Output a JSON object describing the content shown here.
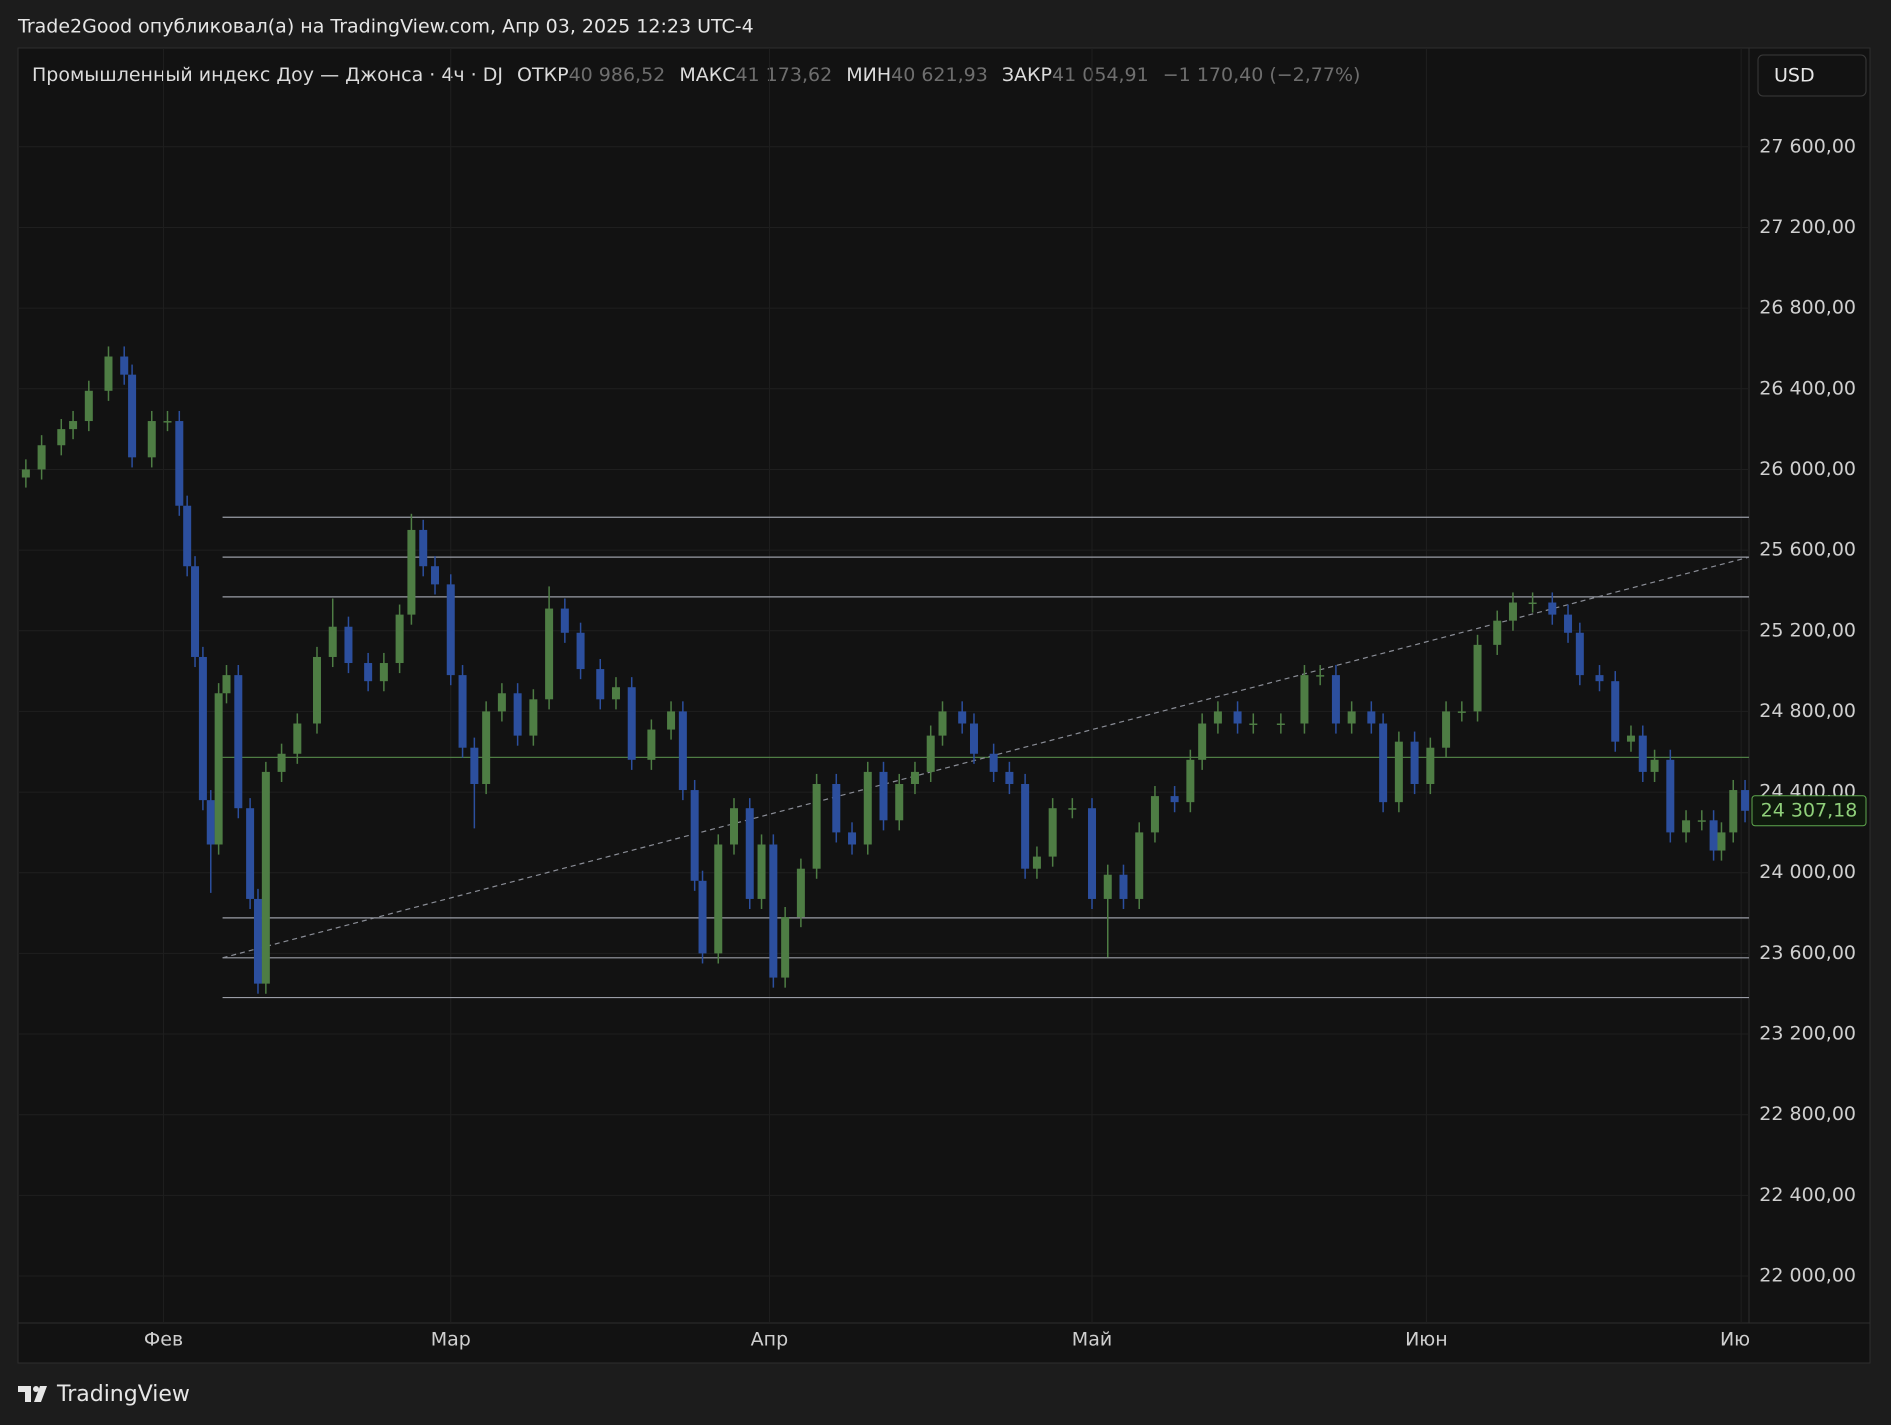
{
  "header": {
    "publisher": "Trade2Good опубликовал(а) на TradingView.com, Апр 03, 2025 12:23 UTC-4",
    "symbol": "Промышленный индекс Доу — Джонса · 4ч · DJ",
    "open_label": "ОТКР",
    "open_value": "40 986,52",
    "high_label": "МАКС",
    "high_value": "41 173,62",
    "low_label": "МИН",
    "low_value": "40 621,93",
    "close_label": "ЗАКР",
    "close_value": "41 054,91",
    "change": "−1 170,40 (−2,77%)",
    "currency": "USD"
  },
  "footer": {
    "brand": "TradingView"
  },
  "chart_data": {
    "type": "candlestick",
    "up_color": "#4e7d44",
    "down_color": "#2c4f9e",
    "grid": true,
    "xlim": [
      0,
      440
    ],
    "ylim": [
      21767,
      28090
    ],
    "xticks": [
      {
        "value": 37,
        "label": "Фев"
      },
      {
        "value": 110,
        "label": "Мар"
      },
      {
        "value": 191,
        "label": "Апр"
      },
      {
        "value": 273,
        "label": "Май"
      },
      {
        "value": 358,
        "label": "Июн"
      },
      {
        "value": 438,
        "label": "Июл"
      }
    ],
    "yticks": [
      {
        "value": 22000,
        "label": "22 000,00"
      },
      {
        "value": 22400,
        "label": "22 400,00"
      },
      {
        "value": 22800,
        "label": "22 800,00"
      },
      {
        "value": 23200,
        "label": "23 200,00"
      },
      {
        "value": 23600,
        "label": "23 600,00"
      },
      {
        "value": 24000,
        "label": "24 000,00"
      },
      {
        "value": 24400,
        "label": "24 400,00"
      },
      {
        "value": 24800,
        "label": "24 800,00"
      },
      {
        "value": 25200,
        "label": "25 200,00"
      },
      {
        "value": 25600,
        "label": "25 600,00"
      },
      {
        "value": 26000,
        "label": "26 000,00"
      },
      {
        "value": 26400,
        "label": "26 400,00"
      },
      {
        "value": 26800,
        "label": "26 800,00"
      },
      {
        "value": 27200,
        "label": "27 200,00"
      },
      {
        "value": 27600,
        "label": "27 600,00"
      }
    ],
    "x": [
      2,
      6,
      11,
      14,
      18,
      23,
      27,
      29,
      34,
      38,
      41,
      43,
      45,
      47,
      49,
      51,
      53,
      56,
      59,
      61,
      63,
      67,
      71,
      76,
      80,
      84,
      89,
      93,
      97,
      100,
      103,
      106,
      110,
      113,
      116,
      119,
      123,
      127,
      131,
      135,
      139,
      143,
      148,
      152,
      156,
      161,
      166,
      169,
      172,
      174,
      178,
      182,
      186,
      189,
      192,
      195,
      199,
      203,
      208,
      212,
      216,
      220,
      224,
      228,
      232,
      235,
      240,
      243,
      248,
      252,
      256,
      259,
      263,
      268,
      273,
      277,
      281,
      285,
      289,
      294,
      298,
      301,
      305,
      310,
      314,
      321,
      327,
      331,
      335,
      339,
      344,
      347,
      351,
      355,
      359,
      363,
      367,
      371,
      376,
      380,
      385,
      390,
      394,
      397,
      402,
      406,
      410,
      413,
      416,
      420,
      424,
      428,
      431,
      433,
      436,
      439
    ],
    "open": [
      25960,
      26000,
      26120,
      26200,
      26240,
      26390,
      26560,
      26470,
      26060,
      26240,
      26240,
      25820,
      25520,
      25070,
      24360,
      24140,
      24890,
      24980,
      24320,
      23870,
      23450,
      24500,
      24590,
      24740,
      25070,
      25220,
      25040,
      24950,
      25040,
      25280,
      25700,
      25520,
      25430,
      24980,
      24620,
      24440,
      24800,
      24890,
      24680,
      24860,
      25310,
      25190,
      25010,
      24860,
      24920,
      24560,
      24710,
      24800,
      24410,
      23960,
      23600,
      24140,
      24320,
      23870,
      24140,
      23480,
      23780,
      24020,
      24440,
      24200,
      24140,
      24500,
      24260,
      24440,
      24500,
      24680,
      24800,
      24740,
      24590,
      24500,
      24440,
      24020,
      24080,
      24320,
      24320,
      23870,
      23990,
      23870,
      24200,
      24380,
      24350,
      24560,
      24740,
      24800,
      24740,
      24740,
      24740,
      24980,
      24980,
      24740,
      24800,
      24740,
      24350,
      24650,
      24440,
      24620,
      24800,
      24800,
      25130,
      25250,
      25340,
      25340,
      25280,
      25190,
      24980,
      24950,
      24650,
      24680,
      24500,
      24560,
      24200,
      24260,
      24260,
      24110,
      24200,
      24410
    ],
    "high": [
      26050,
      26170,
      26250,
      26290,
      26440,
      26610,
      26610,
      26520,
      26290,
      26290,
      26290,
      25870,
      25570,
      25120,
      24410,
      24940,
      25030,
      25030,
      24370,
      23920,
      24550,
      24640,
      24790,
      25120,
      25360,
      25270,
      25090,
      25090,
      25330,
      25780,
      25750,
      25570,
      25480,
      25030,
      24670,
      24850,
      24940,
      24940,
      24910,
      25420,
      25360,
      25240,
      25060,
      24970,
      24970,
      24760,
      24850,
      24850,
      24460,
      24010,
      24190,
      24370,
      24370,
      24190,
      24190,
      23830,
      24070,
      24490,
      24490,
      24250,
      24550,
      24550,
      24490,
      24550,
      24730,
      24850,
      24850,
      24790,
      24640,
      24550,
      24490,
      24130,
      24370,
      24370,
      24370,
      24040,
      24040,
      24250,
      24430,
      24430,
      24610,
      24790,
      24850,
      24850,
      24790,
      24790,
      25030,
      25030,
      25030,
      24850,
      24850,
      24790,
      24700,
      24700,
      24670,
      24850,
      24850,
      25180,
      25300,
      25390,
      25390,
      25390,
      25330,
      25240,
      25030,
      25000,
      24730,
      24730,
      24610,
      24610,
      24310,
      24310,
      24310,
      24250,
      24460,
      24460
    ],
    "low": [
      25910,
      25950,
      26070,
      26150,
      26190,
      26340,
      26420,
      26010,
      26010,
      26190,
      25770,
      25470,
      25020,
      24310,
      23900,
      24090,
      24840,
      24270,
      23820,
      23400,
      23400,
      24450,
      24540,
      24690,
      25020,
      24990,
      24900,
      24900,
      24990,
      25230,
      25470,
      25380,
      24930,
      24570,
      24220,
      24390,
      24750,
      24630,
      24630,
      24810,
      25140,
      24960,
      24810,
      24810,
      24510,
      24510,
      24660,
      24360,
      23910,
      23550,
      23550,
      24090,
      23820,
      23820,
      23430,
      23430,
      23730,
      23970,
      24150,
      24090,
      24090,
      24210,
      24210,
      24390,
      24450,
      24630,
      24690,
      24540,
      24450,
      24390,
      23970,
      23970,
      24030,
      24270,
      23820,
      23580,
      23820,
      23820,
      24150,
      24300,
      24300,
      24510,
      24690,
      24690,
      24690,
      24690,
      24690,
      24930,
      24690,
      24690,
      24690,
      24300,
      24300,
      24390,
      24390,
      24570,
      24750,
      24750,
      25080,
      25200,
      25290,
      25230,
      25140,
      24930,
      24900,
      24600,
      24600,
      24450,
      24450,
      24150,
      24150,
      24210,
      24060,
      24060,
      24150,
      24250
    ],
    "close": [
      26000,
      26120,
      26200,
      26240,
      26390,
      26560,
      26470,
      26060,
      26240,
      26240,
      25820,
      25520,
      25070,
      24360,
      24140,
      24890,
      24980,
      24320,
      23870,
      23450,
      24500,
      24590,
      24740,
      25070,
      25220,
      25040,
      24950,
      25040,
      25280,
      25700,
      25520,
      25430,
      24980,
      24620,
      24440,
      24800,
      24890,
      24680,
      24860,
      25310,
      25190,
      25010,
      24860,
      24920,
      24560,
      24710,
      24800,
      24410,
      23960,
      23600,
      24140,
      24320,
      23870,
      24140,
      23480,
      23780,
      24020,
      24440,
      24200,
      24140,
      24500,
      24260,
      24440,
      24500,
      24680,
      24800,
      24740,
      24590,
      24500,
      24440,
      24020,
      24080,
      24320,
      24320,
      23870,
      23990,
      23870,
      24200,
      24380,
      24350,
      24560,
      24740,
      24800,
      24740,
      24740,
      24740,
      24980,
      24980,
      24740,
      24800,
      24740,
      24350,
      24650,
      24440,
      24620,
      24800,
      24800,
      25130,
      25250,
      25340,
      25340,
      25280,
      25190,
      24980,
      24950,
      24650,
      24680,
      24500,
      24560,
      24200,
      24260,
      24260,
      24110,
      24200,
      24410,
      24307.18
    ],
    "last_price": {
      "value": 24307.18,
      "label": "24 307,18"
    },
    "hlines": {
      "x_start": 52,
      "lines": [
        {
          "value": 25763,
          "color": "#9a9da6"
        },
        {
          "value": 25565,
          "color": "#9a9da6"
        },
        {
          "value": 25368,
          "color": "#9a9da6"
        },
        {
          "value": 24572,
          "color": "#4e7d44"
        },
        {
          "value": 23776,
          "color": "#9a9da6"
        },
        {
          "value": 23578,
          "color": "#9a9da6"
        },
        {
          "value": 23381,
          "color": "#9a9da6"
        }
      ]
    },
    "trendline": {
      "x": [
        52,
        440
      ],
      "y": [
        23578,
        25565
      ],
      "color": "#8a8d96"
    }
  }
}
